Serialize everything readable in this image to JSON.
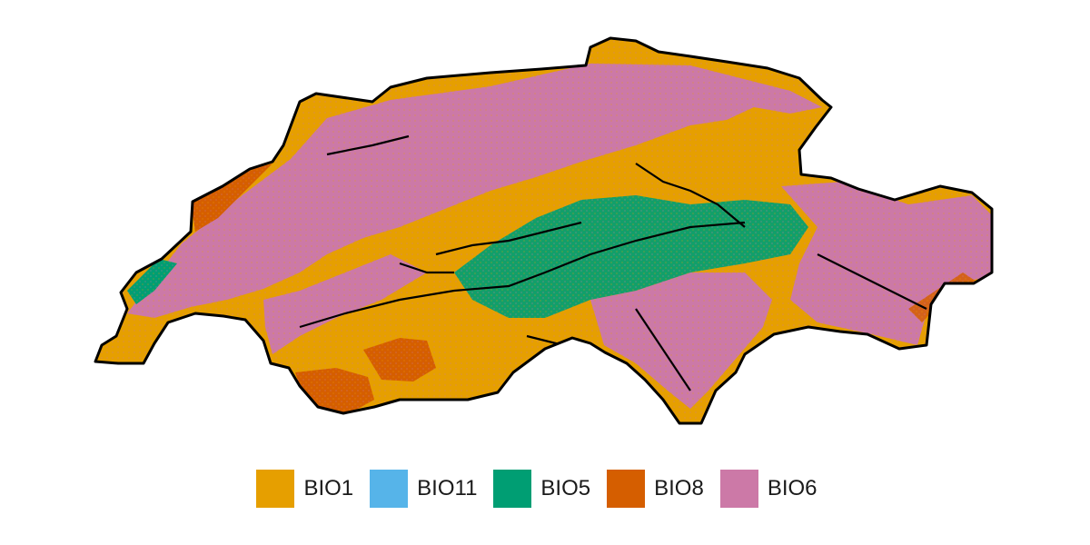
{
  "map": {
    "region": "Switzerland",
    "display": "categorical raster map",
    "border_color": "#000000",
    "background": "#ffffff"
  },
  "legend": {
    "position": "bottom-center",
    "items": [
      {
        "label": "BIO1",
        "color": "#E69F00"
      },
      {
        "label": "BIO11",
        "color": "#56B4E9"
      },
      {
        "label": "BIO5",
        "color": "#009E73"
      },
      {
        "label": "BIO8",
        "color": "#D55E00"
      },
      {
        "label": "BIO6",
        "color": "#CC79A7"
      }
    ]
  }
}
